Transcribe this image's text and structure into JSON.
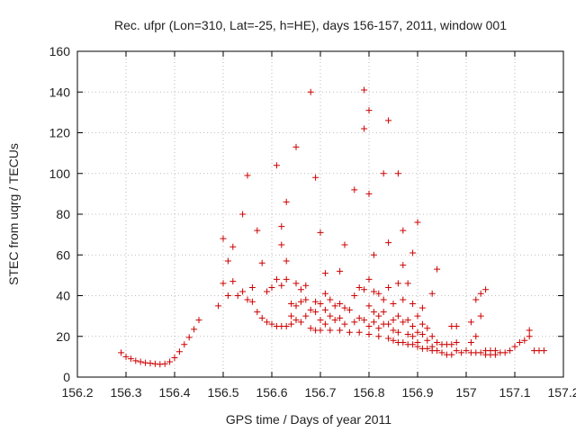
{
  "chart_data": {
    "type": "scatter",
    "title": "Rec. ufpr (Lon=310, Lat=-25, h=HE), days 156-157, 2011, window 001",
    "xlabel": "GPS time / Days of year 2011",
    "ylabel": "STEC from uqrg / TECUs",
    "xlim": [
      156.2,
      157.2
    ],
    "ylim": [
      0,
      160
    ],
    "xticks": [
      156.2,
      156.3,
      156.4,
      156.5,
      156.6,
      156.7,
      156.8,
      156.9,
      157.0,
      157.1,
      157.2
    ],
    "xtick_labels": [
      "156.2",
      "156.3",
      "156.4",
      "156.5",
      "156.6",
      "156.7",
      "156.8",
      "156.9",
      "157",
      "157.1",
      "157.2"
    ],
    "yticks": [
      0,
      20,
      40,
      60,
      80,
      100,
      120,
      140,
      160
    ],
    "ytick_labels": [
      "0",
      "20",
      "40",
      "60",
      "80",
      "100",
      "120",
      "140",
      "160"
    ],
    "grid": true,
    "marker": "+",
    "marker_color": "#cc0000",
    "series": [
      {
        "points": [
          [
            156.29,
            12
          ],
          [
            156.3,
            10
          ],
          [
            156.31,
            9
          ],
          [
            156.32,
            8
          ],
          [
            156.33,
            7.5
          ],
          [
            156.34,
            7
          ],
          [
            156.35,
            6.8
          ],
          [
            156.36,
            6.5
          ],
          [
            156.37,
            6.3
          ],
          [
            156.38,
            6.5
          ],
          [
            156.39,
            7.5
          ],
          [
            156.4,
            9.5
          ],
          [
            156.41,
            12.5
          ],
          [
            156.42,
            16
          ],
          [
            156.43,
            19.5
          ],
          [
            156.44,
            23.5
          ],
          [
            156.45,
            28
          ],
          [
            156.49,
            35
          ],
          [
            156.5,
            46
          ],
          [
            156.5,
            68
          ],
          [
            156.51,
            57
          ],
          [
            156.51,
            40
          ],
          [
            156.52,
            47
          ],
          [
            156.52,
            64
          ],
          [
            156.53,
            40
          ],
          [
            156.54,
            42
          ],
          [
            156.54,
            80
          ],
          [
            156.55,
            99
          ],
          [
            156.55,
            38
          ],
          [
            156.56,
            44
          ],
          [
            156.56,
            37
          ],
          [
            156.57,
            72
          ],
          [
            156.57,
            32
          ],
          [
            156.58,
            56
          ],
          [
            156.58,
            29
          ],
          [
            156.59,
            42
          ],
          [
            156.59,
            27
          ],
          [
            156.6,
            44
          ],
          [
            156.6,
            26
          ],
          [
            156.61,
            104
          ],
          [
            156.61,
            48
          ],
          [
            156.61,
            25
          ],
          [
            156.62,
            74
          ],
          [
            156.62,
            65
          ],
          [
            156.62,
            45
          ],
          [
            156.62,
            25
          ],
          [
            156.63,
            86
          ],
          [
            156.63,
            57
          ],
          [
            156.63,
            48
          ],
          [
            156.63,
            25
          ],
          [
            156.64,
            36
          ],
          [
            156.64,
            30
          ],
          [
            156.64,
            26
          ],
          [
            156.65,
            113
          ],
          [
            156.65,
            46
          ],
          [
            156.65,
            35
          ],
          [
            156.65,
            28
          ],
          [
            156.66,
            43
          ],
          [
            156.66,
            37
          ],
          [
            156.66,
            27
          ],
          [
            156.67,
            45
          ],
          [
            156.67,
            38
          ],
          [
            156.67,
            30
          ],
          [
            156.68,
            140
          ],
          [
            156.68,
            33
          ],
          [
            156.68,
            24
          ],
          [
            156.69,
            98
          ],
          [
            156.69,
            37
          ],
          [
            156.69,
            32
          ],
          [
            156.69,
            23
          ],
          [
            156.7,
            71
          ],
          [
            156.7,
            36
          ],
          [
            156.7,
            28
          ],
          [
            156.7,
            23
          ],
          [
            156.71,
            51
          ],
          [
            156.71,
            41
          ],
          [
            156.71,
            33
          ],
          [
            156.71,
            26
          ],
          [
            156.72,
            38
          ],
          [
            156.72,
            30
          ],
          [
            156.72,
            23
          ],
          [
            156.73,
            35
          ],
          [
            156.73,
            28
          ],
          [
            156.74,
            52
          ],
          [
            156.74,
            36
          ],
          [
            156.74,
            29
          ],
          [
            156.74,
            23
          ],
          [
            156.75,
            65
          ],
          [
            156.75,
            34
          ],
          [
            156.75,
            26
          ],
          [
            156.76,
            33
          ],
          [
            156.76,
            22
          ],
          [
            156.77,
            92
          ],
          [
            156.77,
            40
          ],
          [
            156.77,
            27
          ],
          [
            156.78,
            44
          ],
          [
            156.78,
            29
          ],
          [
            156.78,
            22
          ],
          [
            156.79,
            141
          ],
          [
            156.79,
            122
          ],
          [
            156.79,
            43
          ],
          [
            156.79,
            28
          ],
          [
            156.8,
            131
          ],
          [
            156.8,
            90
          ],
          [
            156.8,
            48
          ],
          [
            156.8,
            35
          ],
          [
            156.8,
            25
          ],
          [
            156.8,
            21
          ],
          [
            156.81,
            60
          ],
          [
            156.81,
            42
          ],
          [
            156.81,
            32
          ],
          [
            156.81,
            27
          ],
          [
            156.82,
            41
          ],
          [
            156.82,
            30
          ],
          [
            156.82,
            24
          ],
          [
            156.82,
            20
          ],
          [
            156.83,
            100
          ],
          [
            156.83,
            38
          ],
          [
            156.83,
            32
          ],
          [
            156.83,
            26
          ],
          [
            156.84,
            126
          ],
          [
            156.84,
            66
          ],
          [
            156.84,
            44
          ],
          [
            156.84,
            26
          ],
          [
            156.84,
            19
          ],
          [
            156.85,
            36
          ],
          [
            156.85,
            28
          ],
          [
            156.85,
            23
          ],
          [
            156.85,
            18
          ],
          [
            156.86,
            100
          ],
          [
            156.86,
            46
          ],
          [
            156.86,
            30
          ],
          [
            156.86,
            22
          ],
          [
            156.86,
            17
          ],
          [
            156.87,
            72
          ],
          [
            156.87,
            55
          ],
          [
            156.87,
            38
          ],
          [
            156.87,
            27
          ],
          [
            156.87,
            17
          ],
          [
            156.88,
            46
          ],
          [
            156.88,
            28
          ],
          [
            156.88,
            21
          ],
          [
            156.88,
            16
          ],
          [
            156.89,
            61
          ],
          [
            156.89,
            36
          ],
          [
            156.89,
            25
          ],
          [
            156.89,
            20
          ],
          [
            156.89,
            16
          ],
          [
            156.9,
            76
          ],
          [
            156.9,
            30
          ],
          [
            156.9,
            22
          ],
          [
            156.9,
            17
          ],
          [
            156.9,
            15
          ],
          [
            156.91,
            34
          ],
          [
            156.91,
            26
          ],
          [
            156.91,
            21
          ],
          [
            156.91,
            14
          ],
          [
            156.92,
            24
          ],
          [
            156.92,
            18
          ],
          [
            156.92,
            14
          ],
          [
            156.93,
            41
          ],
          [
            156.93,
            20
          ],
          [
            156.93,
            15
          ],
          [
            156.93,
            13
          ],
          [
            156.94,
            53
          ],
          [
            156.94,
            17
          ],
          [
            156.94,
            13
          ],
          [
            156.95,
            16
          ],
          [
            156.95,
            12
          ],
          [
            156.96,
            16
          ],
          [
            156.96,
            11
          ],
          [
            156.97,
            25
          ],
          [
            156.97,
            16
          ],
          [
            156.97,
            11
          ],
          [
            156.98,
            25
          ],
          [
            156.98,
            17
          ],
          [
            156.98,
            13
          ],
          [
            156.99,
            12
          ],
          [
            157.0,
            13
          ],
          [
            157.01,
            27
          ],
          [
            157.01,
            17
          ],
          [
            157.01,
            12
          ],
          [
            157.02,
            38
          ],
          [
            157.02,
            20
          ],
          [
            157.02,
            12
          ],
          [
            157.03,
            41
          ],
          [
            157.03,
            30
          ],
          [
            157.03,
            12
          ],
          [
            157.04,
            43
          ],
          [
            157.04,
            13
          ],
          [
            157.04,
            11
          ],
          [
            157.05,
            13
          ],
          [
            157.05,
            11
          ],
          [
            157.06,
            13
          ],
          [
            157.06,
            11
          ],
          [
            157.07,
            12
          ],
          [
            157.08,
            12
          ],
          [
            157.09,
            13
          ],
          [
            157.1,
            15
          ],
          [
            157.11,
            17
          ],
          [
            157.12,
            18
          ],
          [
            157.13,
            20
          ],
          [
            157.13,
            23
          ],
          [
            157.14,
            13
          ],
          [
            157.15,
            13
          ],
          [
            157.16,
            13
          ]
        ]
      }
    ]
  }
}
